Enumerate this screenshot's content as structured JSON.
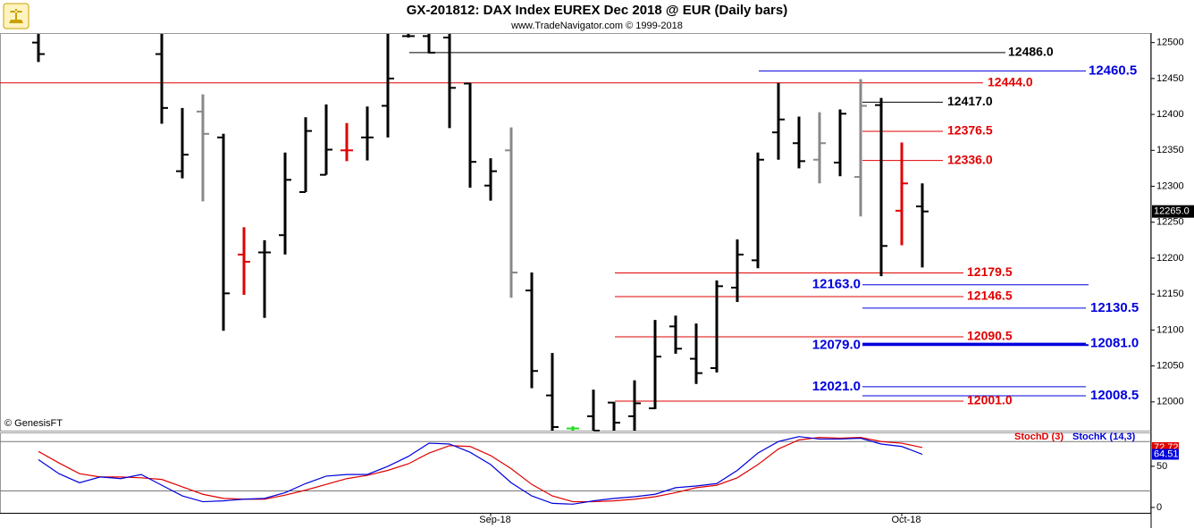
{
  "chart_data": [
    {
      "type": "ohlc",
      "title": "GX-201812:  DAX Index EUREX Dec 2018 @ EUR  (Daily bars)",
      "subtitle": "www.TradeNavigator.com © 1999-2018",
      "credit": "© GenesisFT",
      "ylim": [
        11960,
        12512
      ],
      "yticks": [
        12000,
        12050,
        12100,
        12150,
        12200,
        12250,
        12300,
        12350,
        12400,
        12450,
        12500
      ],
      "last_price": {
        "value": 12265,
        "label": "12265.0"
      },
      "high": [
        12512,
        null,
        null,
        null,
        null,
        null,
        12512,
        12409,
        12428,
        12373,
        12243,
        12225,
        12347,
        12396,
        12414,
        12388,
        12411,
        12512,
        12512,
        12512,
        12512,
        12444,
        12339,
        12382,
        12180,
        12068,
        11966,
        12017,
        12000,
        12030,
        12114,
        12120,
        12109,
        12169,
        12226,
        12347,
        12444,
        12397,
        12403,
        12407,
        12449,
        12423,
        12361,
        12304
      ],
      "low": [
        12473,
        null,
        null,
        null,
        null,
        null,
        12387,
        12311,
        12279,
        12099,
        12149,
        12117,
        12205,
        12292,
        12316,
        12335,
        12336,
        12368,
        12507,
        12485,
        12381,
        12298,
        12280,
        12145,
        12019,
        11960,
        11960,
        11960,
        11960,
        11960,
        11990,
        12067,
        12025,
        12041,
        12139,
        12186,
        12337,
        12325,
        12304,
        12314,
        12258,
        12175,
        12218,
        12187
      ],
      "open": [
        12500,
        null,
        null,
        null,
        null,
        null,
        12484,
        12321,
        12404,
        12368,
        12205,
        12208,
        12232,
        12292,
        12316,
        12350,
        12368,
        12412,
        12509,
        12509,
        12507,
        12443,
        12301,
        12350,
        12155,
        12009,
        11963,
        11980,
        11999,
        11980,
        11991,
        12105,
        12060,
        12047,
        12159,
        12197,
        12375,
        12360,
        12337,
        12333,
        12313,
        12413,
        12266,
        12272
      ],
      "close": [
        12484,
        null,
        null,
        null,
        null,
        null,
        12409,
        12344,
        12373,
        12151,
        12195,
        12208,
        12309,
        12377,
        12351,
        12350,
        12368,
        12450,
        12509,
        12486,
        12437,
        12334,
        12321,
        12180,
        12043,
        11965,
        11963,
        11960,
        11971,
        11998,
        12063,
        12074,
        12040,
        12161,
        12205,
        12337,
        12393,
        12335,
        12360,
        12401,
        12412,
        12217,
        12304,
        12265
      ],
      "colors": [
        "#000",
        "#000",
        "#000",
        "#000",
        "#000",
        "#000",
        "#000",
        "#000",
        "#888",
        "#000",
        "#e00000",
        "#000",
        "#000",
        "#000",
        "#000",
        "#e00000",
        "#000",
        "#000",
        "#000",
        "#000",
        "#000",
        "#000",
        "#000",
        "#888",
        "#000",
        "#000",
        "#22dd22",
        "#000",
        "#000",
        "#000",
        "#000",
        "#000",
        "#000",
        "#000",
        "#000",
        "#000",
        "#000",
        "#000",
        "#888",
        "#000",
        "#888",
        "#000",
        "#e00000",
        "#000"
      ],
      "levels": [
        {
          "value": 12486,
          "label": "12486.0",
          "color": "#000000"
        },
        {
          "value": 12460.5,
          "label": "12460.5",
          "color": "#0000dd"
        },
        {
          "value": 12444,
          "label": "12444.0",
          "color": "#e00000"
        },
        {
          "value": 12417,
          "label": "12417.0",
          "color": "#000000"
        },
        {
          "value": 12376.5,
          "label": "12376.5",
          "color": "#e00000"
        },
        {
          "value": 12336,
          "label": "12336.0",
          "color": "#e00000"
        },
        {
          "value": 12179.5,
          "label": "12179.5",
          "color": "#e00000"
        },
        {
          "value": 12163,
          "label": "12163.0",
          "color": "#0000dd"
        },
        {
          "value": 12146.5,
          "label": "12146.5",
          "color": "#e00000"
        },
        {
          "value": 12130.5,
          "label": "12130.5",
          "color": "#0000dd"
        },
        {
          "value": 12090.5,
          "label": "12090.5",
          "color": "#e00000"
        },
        {
          "value": 12079,
          "label": "12079.0",
          "color": "#0000dd"
        },
        {
          "value": 12081,
          "label": "12081.0",
          "color": "#0000dd"
        },
        {
          "value": 12021,
          "label": "12021.0",
          "color": "#0000dd"
        },
        {
          "value": 12008.5,
          "label": "12008.5",
          "color": "#0000dd"
        },
        {
          "value": 12001,
          "label": "12001.0",
          "color": "#e00000"
        }
      ]
    },
    {
      "type": "line",
      "categories": [
        null,
        null,
        null,
        null,
        null,
        null,
        null,
        null,
        null,
        null,
        null,
        null,
        null,
        null,
        null,
        null,
        null,
        null,
        null,
        null,
        null,
        null,
        "Sep-18",
        null,
        null,
        null,
        null,
        null,
        null,
        null,
        null,
        null,
        null,
        null,
        null,
        null,
        null,
        null,
        null,
        null,
        null,
        null,
        "Oct-18",
        null
      ],
      "ylim": [
        -6.5,
        90
      ],
      "yticks": [
        0,
        50
      ],
      "reference_lines": [
        20,
        80
      ],
      "series": [
        {
          "name": "StochD (3)",
          "color": "#e00000",
          "values": [
            68,
            54,
            41,
            37,
            37,
            36,
            34,
            25,
            16,
            11,
            10,
            10,
            15,
            21,
            28,
            35,
            39,
            45,
            53,
            66,
            75,
            74,
            63,
            47,
            28,
            14,
            7,
            7,
            8,
            10,
            13,
            18,
            24,
            27,
            36,
            52,
            71,
            82,
            85,
            84,
            85,
            80,
            78,
            72.72
          ]
        },
        {
          "name": "StochK (14,3)",
          "color": "#0000dd",
          "values": [
            58,
            41,
            30,
            37,
            35,
            40,
            27,
            14,
            7,
            8,
            10,
            11,
            18,
            29,
            38,
            40,
            40,
            50,
            62,
            78,
            77,
            67,
            52,
            30,
            14,
            5,
            4,
            8,
            11,
            13,
            16,
            24,
            26,
            29,
            45,
            66,
            80,
            86,
            83,
            83,
            84,
            77,
            74,
            64.51
          ]
        }
      ]
    }
  ]
}
